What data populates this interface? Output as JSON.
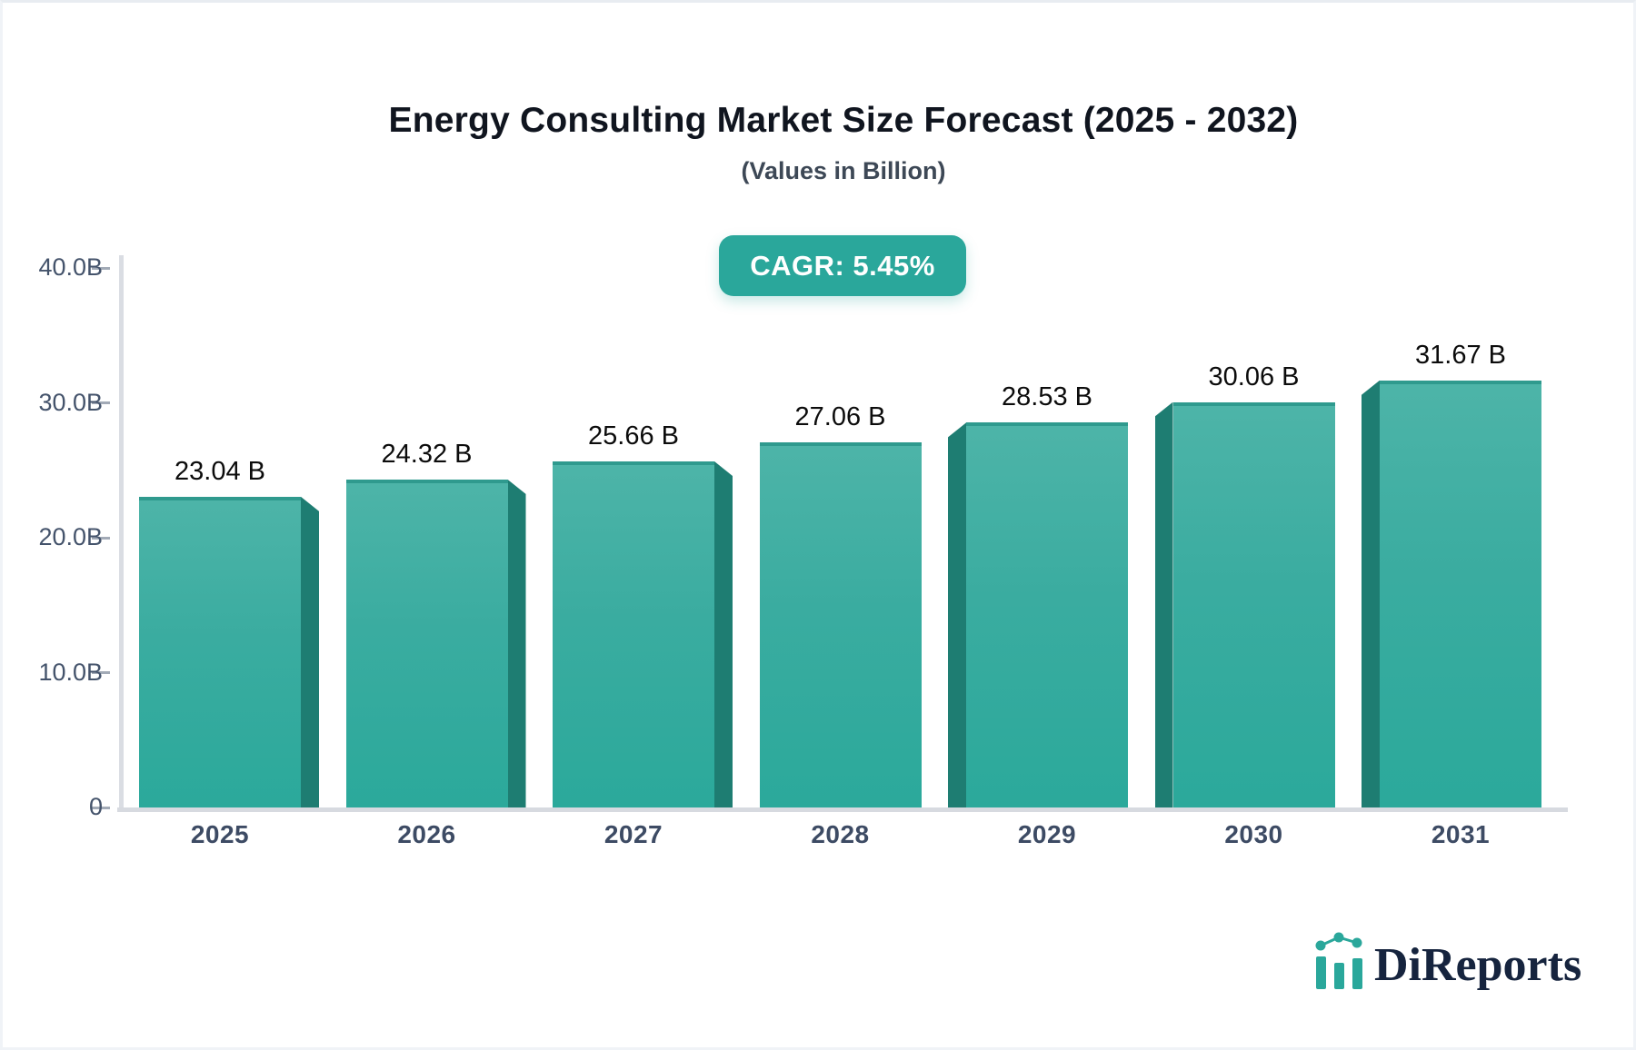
{
  "header": {
    "title": "Energy Consulting Market Size Forecast (2025 - 2032)",
    "subtitle": "(Values in Billion)"
  },
  "badge": {
    "label": "CAGR: 5.45%",
    "color": "#2aa79b"
  },
  "chart_data": {
    "type": "bar",
    "title": "Energy Consulting Market Size Forecast (2025 - 2032)",
    "subtitle": "(Values in Billion)",
    "categories": [
      "2025",
      "2026",
      "2027",
      "2028",
      "2029",
      "2030",
      "2031"
    ],
    "values": [
      23.04,
      24.32,
      25.66,
      27.06,
      28.53,
      30.06,
      31.67
    ],
    "value_labels": [
      "23.04 B",
      "24.32 B",
      "25.66 B",
      "27.06 B",
      "28.53 B",
      "30.06 B",
      "31.67 B"
    ],
    "unit": "B",
    "ylim": [
      0,
      40
    ],
    "yticks": [
      {
        "value": 40,
        "label": "40.0B"
      },
      {
        "value": 30,
        "label": "30.0B"
      },
      {
        "value": 20,
        "label": "20.0B"
      },
      {
        "value": 10,
        "label": "10.0B"
      },
      {
        "value": 0,
        "label": "0"
      }
    ],
    "grid": false,
    "legend": null,
    "style": "3d-bars-center-perspective",
    "bar_color_top": "#4db4a8",
    "bar_color_bottom": "#2ba99b",
    "bar_side_color": "#1e7d72",
    "axis_color": "#d7dae0",
    "cagr_annotation": "CAGR: 5.45%"
  },
  "logo": {
    "text": "DiReports",
    "icon": "bar-chart-sparkline-icon",
    "text_color": "#16243e",
    "accent_color": "#2aa79b"
  }
}
